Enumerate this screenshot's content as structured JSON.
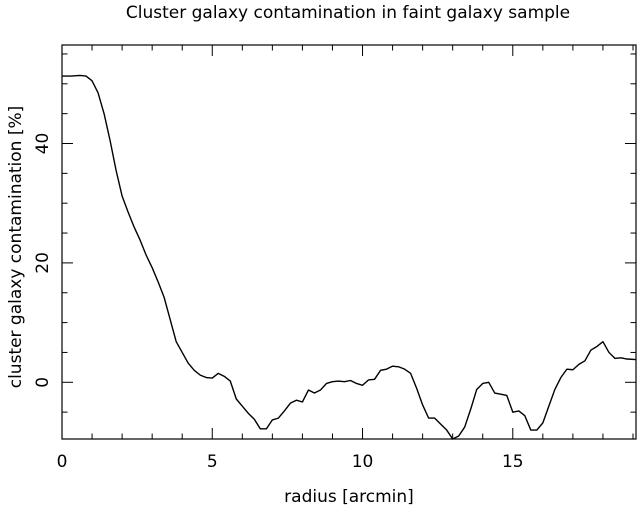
{
  "chart_data": {
    "type": "line",
    "title": "Cluster galaxy contamination in faint galaxy sample",
    "xlabel": "radius [arcmin]",
    "ylabel": "cluster galaxy contamination [%]",
    "xlim": [
      0,
      19.1
    ],
    "ylim": [
      -9.5,
      56.5
    ],
    "xticks_major": [
      0,
      5,
      10,
      15
    ],
    "xticks_minor": [
      1,
      2,
      3,
      4,
      6,
      7,
      8,
      9,
      11,
      12,
      13,
      14,
      16,
      17,
      18,
      19
    ],
    "yticks_major": [
      0,
      20,
      40
    ],
    "yticks_minor": [
      -5,
      5,
      10,
      15,
      25,
      30,
      35,
      45,
      50,
      55
    ],
    "xtick_labels": [
      "0",
      "5",
      "10",
      "15"
    ],
    "ytick_labels": [
      "0",
      "20",
      "40"
    ],
    "grid": false,
    "legend": "none",
    "series": [
      {
        "color": "#000000",
        "x": [
          0.0,
          0.3,
          0.6,
          0.8,
          1.0,
          1.2,
          1.4,
          1.6,
          1.8,
          2.0,
          2.2,
          2.4,
          2.6,
          2.8,
          3.0,
          3.2,
          3.4,
          3.6,
          3.8,
          4.0,
          4.2,
          4.4,
          4.6,
          4.8,
          5.0,
          5.2,
          5.4,
          5.6,
          5.8,
          6.0,
          6.2,
          6.4,
          6.6,
          6.8,
          7.0,
          7.2,
          7.4,
          7.6,
          7.8,
          8.0,
          8.2,
          8.4,
          8.6,
          8.8,
          9.0,
          9.2,
          9.4,
          9.6,
          9.8,
          10.0,
          10.2,
          10.4,
          10.6,
          10.8,
          11.0,
          11.2,
          11.4,
          11.6,
          11.8,
          12.0,
          12.2,
          12.4,
          12.6,
          12.8,
          13.0,
          13.2,
          13.4,
          13.6,
          13.8,
          14.0,
          14.2,
          14.4,
          14.6,
          14.8,
          15.0,
          15.2,
          15.4,
          15.6,
          15.8,
          16.0,
          16.2,
          16.4,
          16.6,
          16.8,
          17.0,
          17.2,
          17.4,
          17.6,
          17.8,
          18.0,
          18.2,
          18.4,
          18.6,
          18.8,
          19.1
        ],
        "values": [
          51.3,
          51.3,
          51.4,
          51.3,
          50.5,
          48.5,
          45.0,
          40.5,
          35.5,
          31.2,
          28.5,
          26.0,
          23.8,
          21.3,
          19.2,
          16.8,
          14.2,
          10.5,
          6.8,
          5.0,
          3.2,
          2.0,
          1.2,
          0.8,
          0.7,
          1.5,
          1.0,
          0.2,
          -2.8,
          -4.0,
          -5.2,
          -6.2,
          -7.8,
          -7.8,
          -6.3,
          -6.0,
          -4.8,
          -3.5,
          -3.0,
          -3.3,
          -1.3,
          -1.8,
          -1.3,
          -0.2,
          0.1,
          0.2,
          0.1,
          0.3,
          -0.2,
          -0.5,
          0.4,
          0.5,
          2.0,
          2.2,
          2.7,
          2.6,
          2.2,
          1.5,
          -1.0,
          -3.8,
          -6.0,
          -6.0,
          -7.0,
          -8.0,
          -9.5,
          -9.0,
          -7.5,
          -4.5,
          -1.2,
          -0.2,
          0.0,
          -1.8,
          -2.0,
          -2.2,
          -5.0,
          -4.8,
          -5.6,
          -8.0,
          -8.0,
          -6.8,
          -4.0,
          -1.2,
          0.8,
          2.2,
          2.1,
          3.0,
          3.6,
          5.4,
          6.0,
          6.8,
          5.0,
          4.0,
          4.1,
          3.9,
          3.8
        ]
      }
    ]
  }
}
